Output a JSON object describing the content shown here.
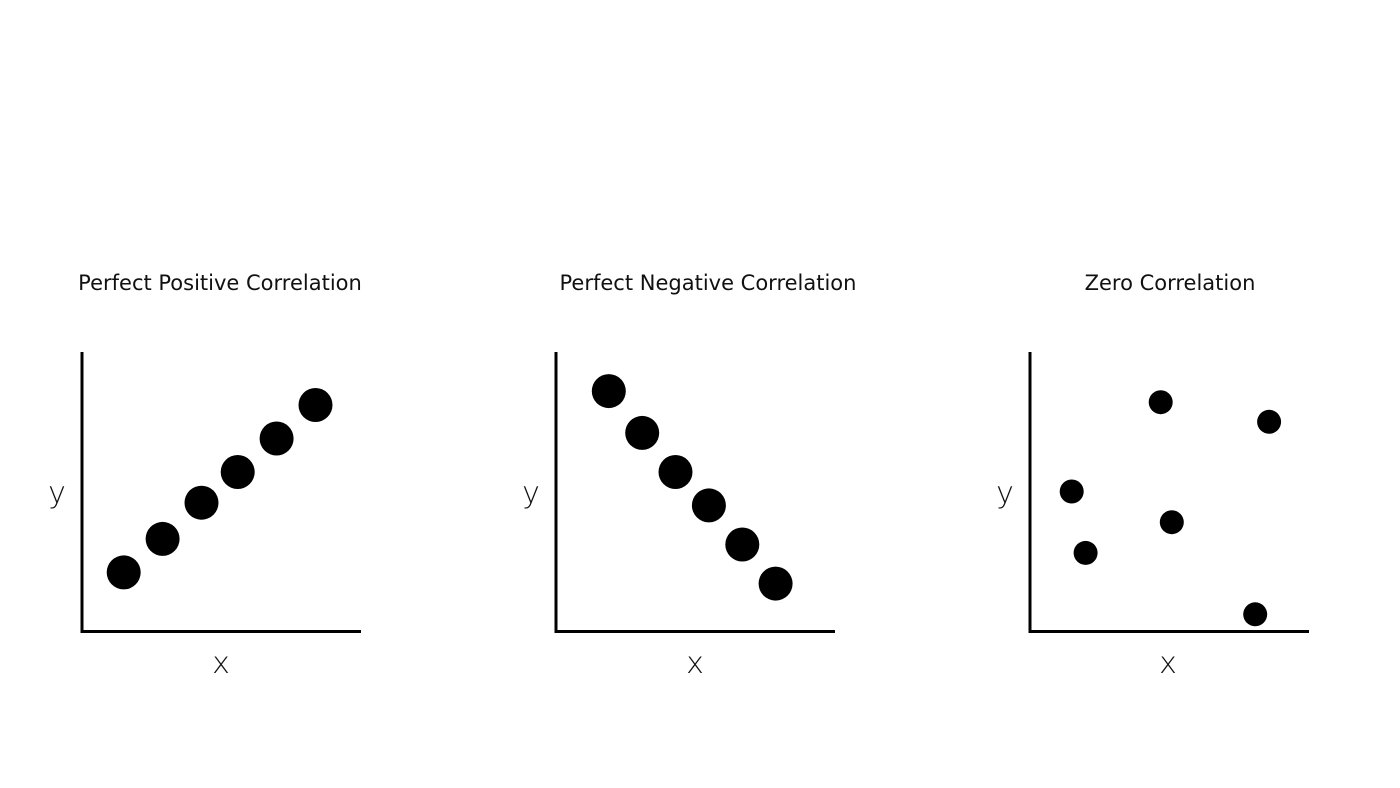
{
  "colors": {
    "ink": "#000000",
    "background": "#ffffff"
  },
  "chart_data": [
    {
      "type": "scatter",
      "title": "Perfect Positive Correlation",
      "xlabel": "x",
      "ylabel": "y",
      "xlim": [
        0,
        10
      ],
      "ylim": [
        0,
        10
      ],
      "grid": false,
      "x": [
        1.5,
        2.9,
        4.3,
        5.6,
        7.0,
        8.4
      ],
      "y": [
        2.1,
        3.3,
        4.6,
        5.7,
        6.9,
        8.1
      ]
    },
    {
      "type": "scatter",
      "title": "Perfect Negative Correlation",
      "xlabel": "x",
      "ylabel": "y",
      "xlim": [
        0,
        10
      ],
      "ylim": [
        0,
        10
      ],
      "grid": false,
      "x": [
        1.9,
        3.1,
        4.3,
        5.5,
        6.7,
        7.9
      ],
      "y": [
        8.6,
        7.1,
        5.7,
        4.5,
        3.1,
        1.7
      ]
    },
    {
      "type": "scatter",
      "title": "Zero Correlation",
      "xlabel": "x",
      "ylabel": "y",
      "xlim": [
        0,
        10
      ],
      "ylim": [
        0,
        10
      ],
      "grid": false,
      "x": [
        1.5,
        2.0,
        4.7,
        5.1,
        8.1,
        8.6
      ],
      "y": [
        5.0,
        2.8,
        8.2,
        3.9,
        0.6,
        7.5
      ]
    }
  ]
}
